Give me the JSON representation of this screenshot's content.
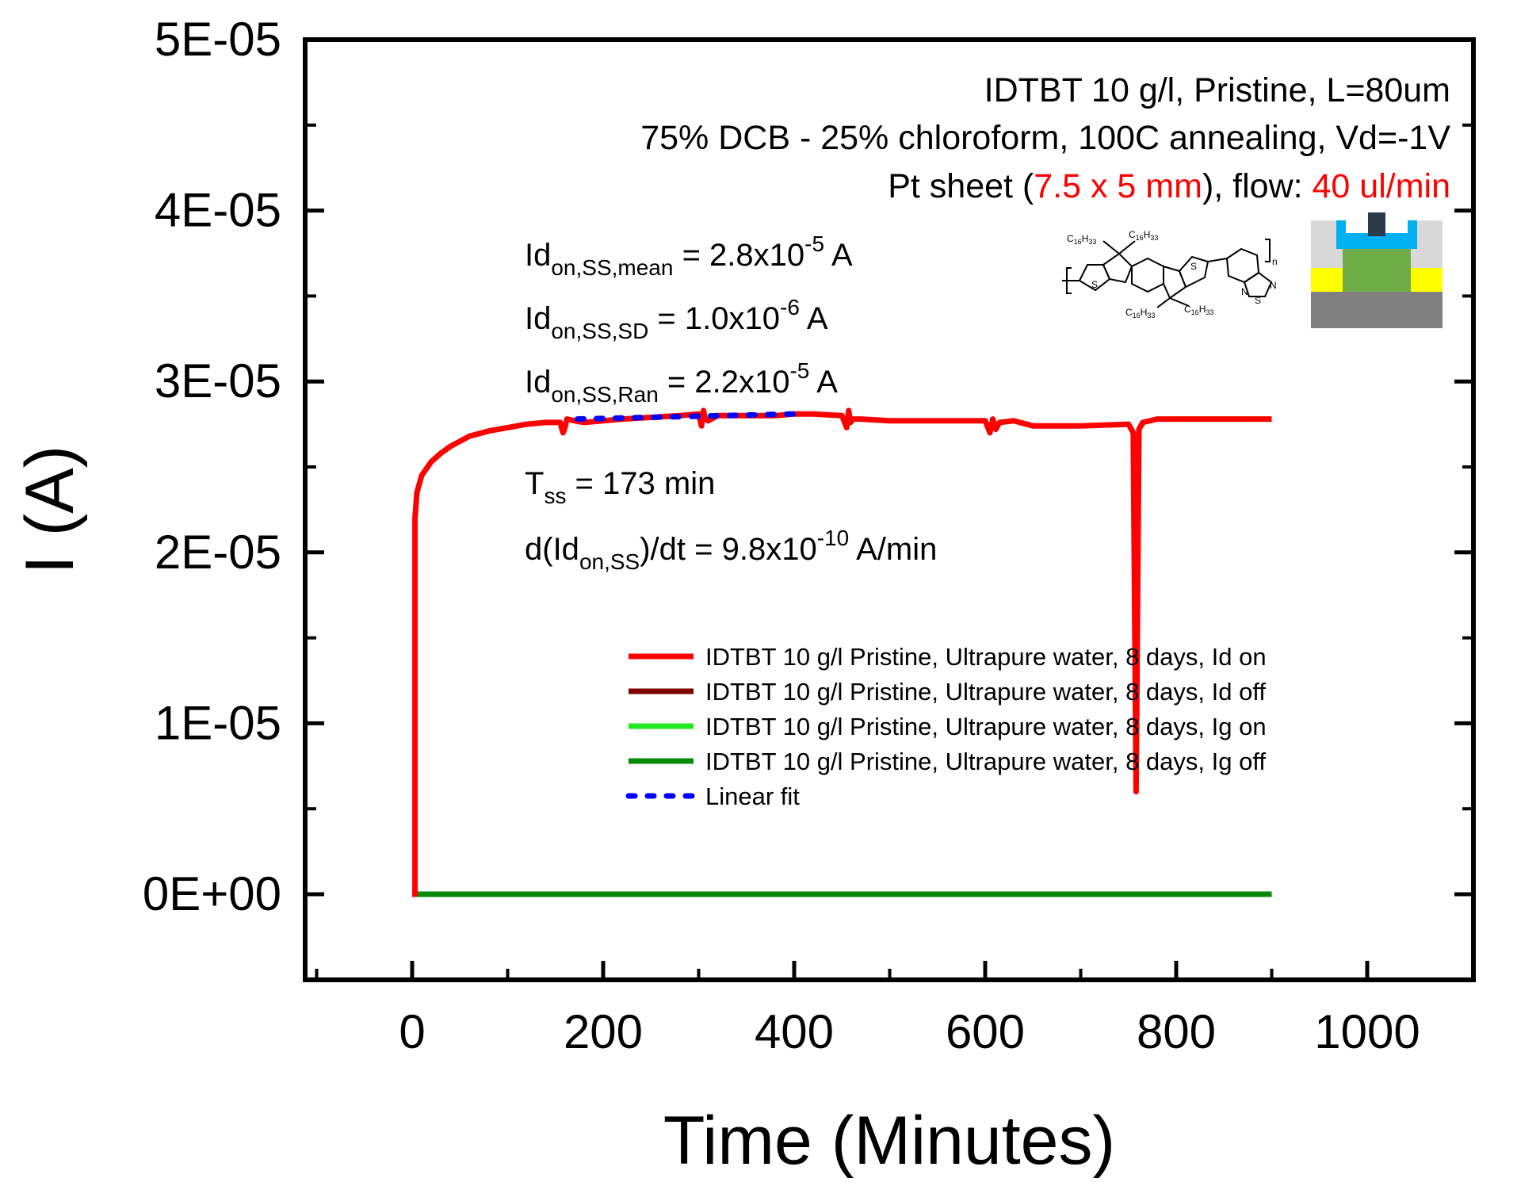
{
  "chart_data": {
    "type": "line",
    "xlabel": "Time (Minutes)",
    "ylabel": "I (A)",
    "xlim": [
      -100,
      1000
    ],
    "ylim": [
      -5e-06,
      5e-05
    ],
    "x_ticks": [
      "0",
      "200",
      "400",
      "600",
      "800",
      "1000"
    ],
    "x_tick_values": [
      0,
      200,
      400,
      600,
      800,
      1000
    ],
    "y_ticks": [
      "0E+00",
      "1E-05",
      "2E-05",
      "3E-05",
      "4E-05",
      "5E-05"
    ],
    "y_tick_values": [
      0,
      1e-05,
      2e-05,
      3e-05,
      4e-05,
      5e-05
    ],
    "grid": false,
    "legend_position": "center-right",
    "series": [
      {
        "name": "IDTBT 10 g/l Pristine, Ultrapure water, 8 days, Id on",
        "color": "#ff0000",
        "style": "solid",
        "x": [
          0,
          3,
          3,
          5,
          10,
          20,
          30,
          40,
          50,
          60,
          80,
          100,
          120,
          140,
          155,
          158,
          160,
          162,
          170,
          180,
          200,
          220,
          250,
          280,
          300,
          303,
          305,
          307,
          310,
          320,
          350,
          380,
          400,
          420,
          450,
          455,
          457,
          459,
          462,
          470,
          500,
          550,
          600,
          605,
          608,
          611,
          615,
          630,
          650,
          700,
          750,
          755,
          758,
          761,
          765,
          780,
          800,
          850,
          900
        ],
        "y": [
          0,
          0,
          2.2e-05,
          2.35e-05,
          2.45e-05,
          2.53e-05,
          2.58e-05,
          2.62e-05,
          2.65e-05,
          2.68e-05,
          2.71e-05,
          2.73e-05,
          2.75e-05,
          2.76e-05,
          2.76e-05,
          2.7e-05,
          2.73e-05,
          2.78e-05,
          2.77e-05,
          2.76e-05,
          2.77e-05,
          2.78e-05,
          2.79e-05,
          2.8e-05,
          2.81e-05,
          2.74e-05,
          2.83e-05,
          2.78e-05,
          2.77e-05,
          2.8e-05,
          2.8e-05,
          2.8e-05,
          2.81e-05,
          2.81e-05,
          2.8e-05,
          2.73e-05,
          2.83e-05,
          2.76e-05,
          2.78e-05,
          2.78e-05,
          2.77e-05,
          2.77e-05,
          2.77e-05,
          2.7e-05,
          2.78e-05,
          2.72e-05,
          2.76e-05,
          2.77e-05,
          2.74e-05,
          2.74e-05,
          2.75e-05,
          2.7e-05,
          6e-06,
          2.72e-05,
          2.76e-05,
          2.78e-05,
          2.78e-05,
          2.78e-05,
          2.78e-05
        ]
      },
      {
        "name": "IDTBT 10 g/l Pristine, Ultrapure water, 8 days, Id off",
        "color": "#7f0000",
        "style": "solid",
        "x": [
          0,
          900
        ],
        "y": [
          0,
          0
        ]
      },
      {
        "name": "IDTBT 10 g/l Pristine, Ultrapure water, 8 days, Ig on",
        "color": "#22e822",
        "style": "solid",
        "x": [
          0,
          900
        ],
        "y": [
          0,
          0
        ]
      },
      {
        "name": "IDTBT 10 g/l Pristine, Ultrapure water, 8 days, Ig off",
        "color": "#0a8a0a",
        "style": "solid",
        "x": [
          0,
          900
        ],
        "y": [
          0,
          0
        ]
      },
      {
        "name": "Linear fit",
        "color": "#0000ff",
        "style": "dotted",
        "x": [
          173,
          400
        ],
        "y": [
          2.78e-05,
          2.81e-05
        ]
      }
    ]
  },
  "annotations": {
    "line1": "IDTBT 10 g/l, Pristine, L=80um",
    "line2": "75% DCB - 25% chloroform, 100C annealing, Vd=-1V",
    "line3": {
      "part1": "Pt sheet (",
      "part2": "7.5 x 5 mm",
      "part3": "), flow: ",
      "part4": "40 ul/min"
    }
  },
  "stats": {
    "mean": {
      "main": "Id",
      "sub": "on,SS,mean",
      "mid": " = 2.8x10",
      "sup": "-5",
      "unit": " A"
    },
    "sd": {
      "main": "Id",
      "sub": "on,SS,SD",
      "mid": " = 1.0x10",
      "sup": "-6",
      "unit": " A"
    },
    "ran": {
      "main": "Id",
      "sub": "on,SS,Ran",
      "mid": " = 2.2x10",
      "sup": "-5",
      "unit": " A"
    },
    "tss": {
      "main": "T",
      "sub": "ss",
      "rest": " = 173 min"
    },
    "slope": {
      "pre": "d(Id",
      "sub": "on,SS",
      "mid": ")/dt = 9.8x10",
      "sup": "-10",
      "unit": " A/min"
    }
  },
  "structure": {
    "sub1": "C",
    "sub1n": "16",
    "sub1h": "H",
    "sub1m": "33",
    "S": "S",
    "N": "N",
    "n": "n"
  },
  "colors": {
    "accent_red": "#ff0000",
    "device_substrate": "#808080",
    "device_contacts": "#ffff00",
    "device_semiconductor": "#70ad47",
    "device_dielectric": "#00b0f0",
    "device_gate": "#2b3a4a"
  }
}
